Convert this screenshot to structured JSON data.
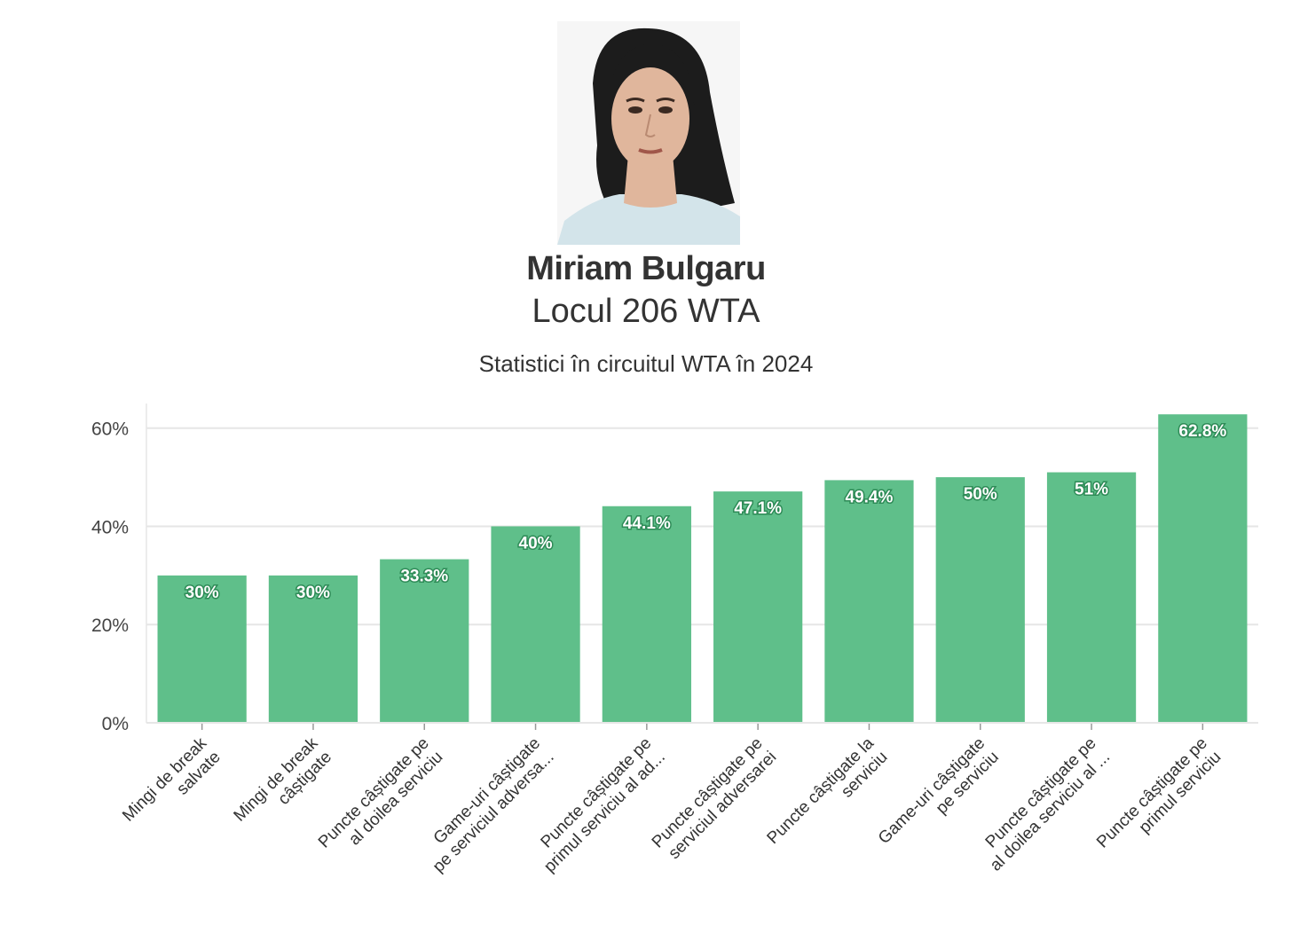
{
  "header": {
    "name": "Miriam Bulgaru",
    "rank": "Locul 206 WTA",
    "subtitle": "Statistici în circuitul WTA în 2024"
  },
  "colors": {
    "bar": "#5fbf8a",
    "bar_label_outline": "#2e8b57",
    "grid": "#e6e6e6",
    "hair": "#1c1c1c",
    "shirt": "#d3e4ea",
    "skin": "#e0b69c"
  },
  "chart_data": {
    "type": "bar",
    "categories": [
      [
        "Mingi de break",
        "salvate"
      ],
      [
        "Mingi de break",
        "câștigate"
      ],
      [
        "Puncte câștigate pe",
        "al doilea serviciu"
      ],
      [
        "Game-uri câștigate",
        "pe serviciul adversa..."
      ],
      [
        "Puncte câștigate pe",
        "primul serviciu al ad..."
      ],
      [
        "Puncte câștigate pe",
        "serviciul adversarei"
      ],
      [
        "Puncte câștigate la",
        "serviciu"
      ],
      [
        "Game-uri câștigate",
        "pe serviciu"
      ],
      [
        "Puncte câștigate pe",
        "al doilea serviciu al ..."
      ],
      [
        "Puncte câștigate pe",
        "primul serviciu"
      ]
    ],
    "values": [
      30,
      30,
      33.3,
      40,
      44.1,
      47.1,
      49.4,
      50,
      51,
      62.8
    ],
    "value_labels": [
      "30%",
      "30%",
      "33.3%",
      "40%",
      "44.1%",
      "47.1%",
      "49.4%",
      "50%",
      "51%",
      "62.8%"
    ],
    "ylim": [
      0,
      65
    ],
    "yticks": [
      0,
      20,
      40,
      60
    ],
    "ytick_labels": [
      "0%",
      "20%",
      "40%",
      "60%"
    ],
    "grid": true,
    "legend": "none"
  }
}
